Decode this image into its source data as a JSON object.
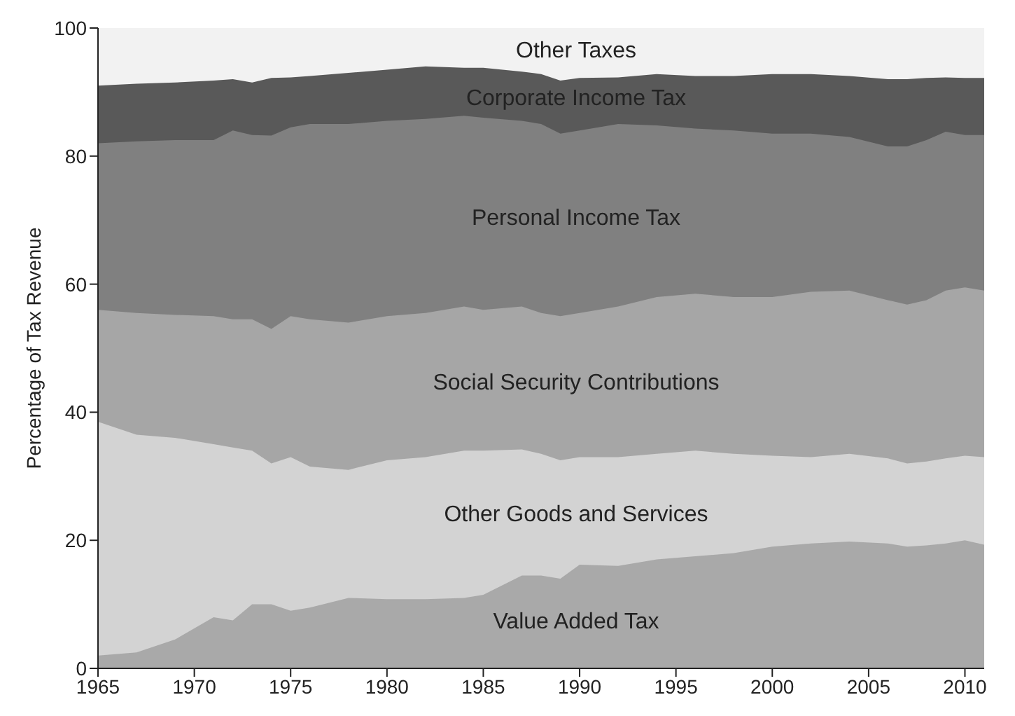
{
  "chart_data": {
    "type": "area",
    "stacked": true,
    "ylabel": "Percentage of Tax Revenue",
    "x": [
      1965,
      1967,
      1969,
      1971,
      1972,
      1973,
      1974,
      1975,
      1976,
      1978,
      1980,
      1982,
      1984,
      1985,
      1987,
      1988,
      1989,
      1990,
      1992,
      1994,
      1996,
      1998,
      2000,
      2002,
      2004,
      2006,
      2007,
      2008,
      2009,
      2010,
      2011
    ],
    "xlim": [
      1965,
      2011
    ],
    "xticks": [
      1965,
      1970,
      1975,
      1980,
      1985,
      1990,
      1995,
      2000,
      2005,
      2010
    ],
    "ylim": [
      0,
      100
    ],
    "yticks": [
      0,
      20,
      40,
      60,
      80,
      100
    ],
    "grid": false,
    "legend": false,
    "series": [
      {
        "name": "Value Added Tax",
        "color": "#a9a9a9",
        "values": [
          2,
          2.5,
          4.5,
          8,
          7.5,
          10,
          10,
          9,
          9.5,
          11,
          10.8,
          10.8,
          11,
          11.5,
          14.5,
          14.5,
          14,
          16.2,
          16,
          17,
          17.5,
          18,
          19,
          19.5,
          19.8,
          19.5,
          19,
          19.2,
          19.5,
          20,
          19.3
        ]
      },
      {
        "name": "Other Goods and Services",
        "color": "#d3d3d3",
        "values": [
          36.5,
          34,
          31.5,
          27,
          27,
          24,
          22,
          24,
          22,
          20,
          21.7,
          22.2,
          23,
          22.5,
          19.7,
          19,
          18.5,
          16.8,
          17,
          16.5,
          16.5,
          15.5,
          14.2,
          13.5,
          13.7,
          13.3,
          13,
          13.1,
          13.3,
          13.2,
          13.7
        ]
      },
      {
        "name": "Social Security Contributions",
        "color": "#a6a6a6",
        "values": [
          17.5,
          19,
          19.2,
          20,
          20,
          20.5,
          21,
          22,
          23,
          23,
          22.5,
          22.5,
          22.5,
          22,
          22.3,
          22,
          22.5,
          22.5,
          23.5,
          24.5,
          24.5,
          24.5,
          24.8,
          25.8,
          25.5,
          24.7,
          24.8,
          25.2,
          26.2,
          26.3,
          26
        ]
      },
      {
        "name": "Personal Income Tax",
        "color": "#808080",
        "values": [
          26,
          26.8,
          27.3,
          27.5,
          29.5,
          28.8,
          30.2,
          29.5,
          30.5,
          31,
          30.5,
          30.3,
          29.8,
          30,
          29,
          29.5,
          28.5,
          28.5,
          28.5,
          26.8,
          25.8,
          26,
          25.5,
          24.7,
          24,
          24,
          24.7,
          25,
          24.8,
          23.8,
          24.3
        ]
      },
      {
        "name": "Corporate Income Tax",
        "color": "#595959",
        "values": [
          9,
          9,
          9,
          9.3,
          8,
          8.2,
          9,
          7.8,
          7.5,
          8,
          8,
          8.2,
          7.5,
          7.8,
          7.7,
          7.8,
          8.3,
          8.2,
          7.3,
          8,
          8.2,
          8.5,
          9.3,
          9.3,
          9.5,
          10.5,
          10.5,
          9.7,
          8.5,
          8.9,
          8.9
        ]
      },
      {
        "name": "Other Taxes",
        "color": "#f2f2f2",
        "values": [
          9,
          8.7,
          8.5,
          8.2,
          8,
          8.5,
          7.8,
          7.7,
          7.5,
          7,
          6.5,
          6,
          6.2,
          6.2,
          6.8,
          7.2,
          8.2,
          7.8,
          7.7,
          7.2,
          7.5,
          7.5,
          7.2,
          7.2,
          7.5,
          8,
          8,
          7.8,
          7.7,
          7.8,
          7.8
        ]
      }
    ]
  }
}
